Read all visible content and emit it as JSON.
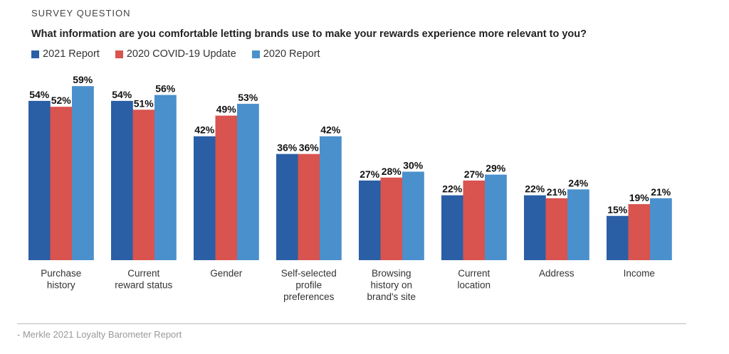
{
  "header": {
    "eyebrow": "SURVEY QUESTION",
    "question": "What information are you comfortable letting brands use to make your rewards experience more relevant to you?"
  },
  "colors": {
    "2021 Report": "#2a5fa5",
    "2020 COVID-19 Update": "#d9534f",
    "2020 Report": "#4a90cc"
  },
  "footer": {
    "source": "- Merkle 2021 Loyalty Barometer Report"
  },
  "chart_data": {
    "type": "bar",
    "title": "What information are you comfortable letting brands use to make your rewards experience more relevant to you?",
    "xlabel": "",
    "ylabel": "",
    "ylim": [
      0,
      60
    ],
    "grid": false,
    "legend_position": "top-left",
    "categories": [
      [
        "Purchase",
        "history"
      ],
      [
        "Current",
        "reward status"
      ],
      [
        "Gender"
      ],
      [
        "Self-selected",
        "profile",
        "preferences"
      ],
      [
        "Browsing",
        "history on",
        "brand's site"
      ],
      [
        "Current",
        "location"
      ],
      [
        "Address"
      ],
      [
        "Income"
      ]
    ],
    "series": [
      {
        "name": "2021 Report",
        "values": [
          54,
          54,
          42,
          36,
          27,
          22,
          22,
          15
        ]
      },
      {
        "name": "2020 COVID-19 Update",
        "values": [
          52,
          51,
          49,
          36,
          28,
          27,
          21,
          19
        ]
      },
      {
        "name": "2020 Report",
        "values": [
          59,
          56,
          53,
          42,
          30,
          29,
          24,
          21
        ]
      }
    ],
    "value_suffix": "%"
  }
}
